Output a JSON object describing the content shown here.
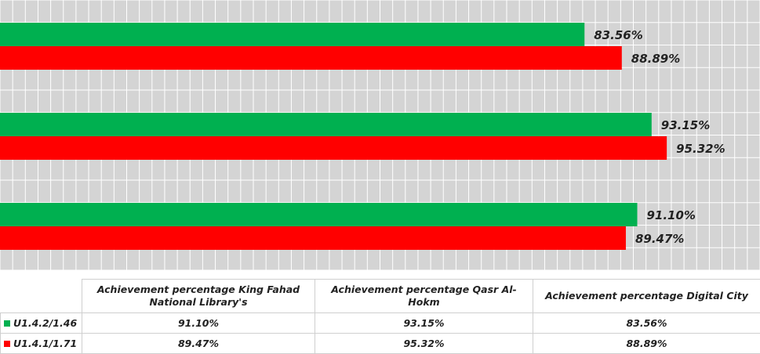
{
  "chart_data": {
    "type": "bar",
    "orientation": "horizontal",
    "categories": [
      "Achievement percentage King Fahad National Library's",
      "Achievement percentage  Qasr Al-Hokm",
      "Achievement percentage Digital City"
    ],
    "series": [
      {
        "name": "U1.4.2/1.46",
        "color": "#00b050",
        "values": [
          91.1,
          93.15,
          83.56
        ],
        "labels": [
          "91.10%",
          "93.15%",
          "83.56%"
        ]
      },
      {
        "name": "U1.4.1/1.71",
        "color": "#ff0000",
        "values": [
          89.47,
          95.32,
          88.89
        ],
        "labels": [
          "89.47%",
          "95.32%",
          "88.89%"
        ]
      }
    ],
    "xlim": [
      0,
      100
    ],
    "grid": true,
    "grid_background": "#d4d4d4",
    "legend": "data-table-below",
    "title": "",
    "xlabel": "",
    "ylabel": ""
  },
  "table": {
    "header_row": [
      "Achievement percentage King Fahad National Library's",
      "Achievement percentage  Qasr Al-Hokm",
      "Achievement percentage Digital City"
    ],
    "rows": [
      {
        "series": "U1.4.2/1.46",
        "color": "#00b050",
        "cells": [
          "91.10%",
          "93.15%",
          "83.56%"
        ]
      },
      {
        "series": "U1.4.1/1.71",
        "color": "#ff0000",
        "cells": [
          "89.47%",
          "95.32%",
          "88.89%"
        ]
      }
    ]
  }
}
